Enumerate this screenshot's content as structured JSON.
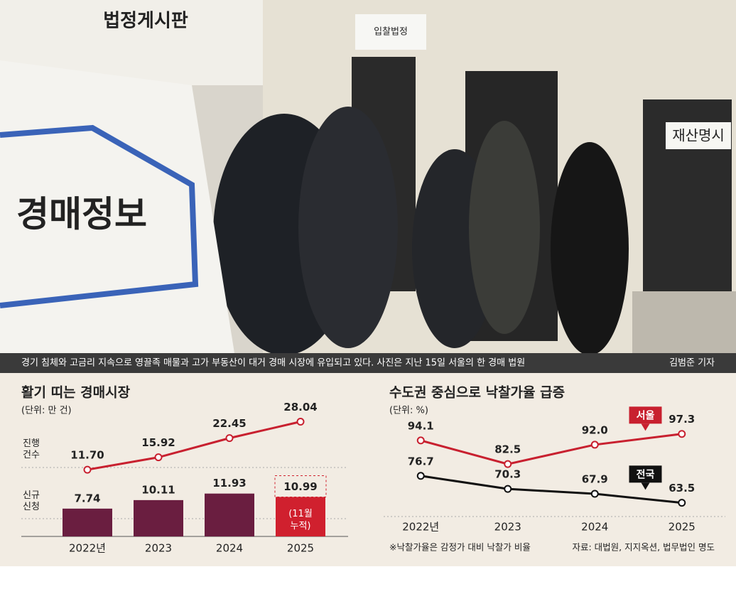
{
  "photo": {
    "signs": [
      "법정게시판",
      "입찰법정",
      "재산명시",
      "경매정보"
    ]
  },
  "caption": "경기 침체와 고금리 지속으로 영끌족 매물과 고가 부동산이 대거 경매 시장에 유입되고 있다. 사진은 지난 15일 서울의 한 경매 법원",
  "credit": "김범준 기자",
  "chart_data": [
    {
      "type": "combo",
      "title": "활기 띠는 경매시장",
      "unit": "(단위: 만 건)",
      "categories": [
        "2022년",
        "2023",
        "2024",
        "2025"
      ],
      "ylim": [
        0,
        36
      ],
      "y2lim": [
        -11,
        33
      ],
      "series": [
        {
          "name": "진행 건수",
          "kind": "line",
          "axis": "y2",
          "color": "#c8202f",
          "values": [
            11.7,
            15.92,
            22.45,
            28.04
          ],
          "value_labels": [
            "11.70",
            "15.92",
            "22.45",
            "28.04"
          ]
        },
        {
          "name": "신규 신청",
          "kind": "bar",
          "color": "#6a1e40",
          "highlight_color": "#d0202e",
          "values": [
            7.74,
            10.11,
            11.93,
            10.99
          ]
        }
      ],
      "annotation": "(11월 누적)"
    },
    {
      "type": "line",
      "title": "수도권 중심으로 낙찰가율 급증",
      "unit": "(단위: %)",
      "categories": [
        "2022년",
        "2023",
        "2024",
        "2025"
      ],
      "ylim": [
        55,
        100
      ],
      "series": [
        {
          "name": "서울",
          "color": "#c8202f",
          "values": [
            94.1,
            82.5,
            92.0,
            97.3
          ],
          "value_labels": [
            "94.1",
            "82.5",
            "92.0",
            "97.3"
          ]
        },
        {
          "name": "전국",
          "color": "#111111",
          "values": [
            76.7,
            70.3,
            67.9,
            63.5
          ]
        }
      ],
      "note": "※낙찰가율은 감정가 대비 낙찰가 비율",
      "source": "자료: 대법원, 지지옥션, 법무법인 명도"
    }
  ]
}
